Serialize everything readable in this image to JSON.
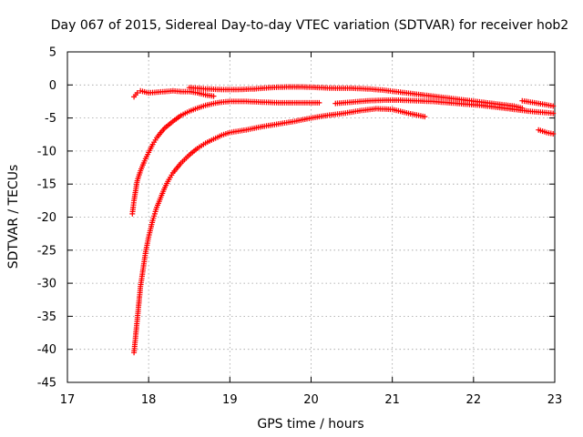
{
  "chart_data": {
    "type": "scatter",
    "title": "Day 067 of 2015, Sidereal Day-to-day VTEC variation (SDTVAR) for receiver hob2",
    "xlabel": "GPS time / hours",
    "ylabel": "SDTVAR / TECUs",
    "xlim": [
      17,
      23
    ],
    "ylim": [
      -45,
      5
    ],
    "xticks": [
      "17",
      "18",
      "19",
      "20",
      "21",
      "22",
      "23"
    ],
    "yticks": [
      "5",
      "0",
      "-5",
      "-10",
      "-15",
      "-20",
      "-25",
      "-30",
      "-35",
      "-40",
      "-45"
    ],
    "grid": true,
    "marker": "+",
    "color": "#ff0000",
    "series": [
      {
        "points": [
          [
            17.82,
            -1.8
          ],
          [
            17.86,
            -1.2
          ],
          [
            17.9,
            -0.9
          ],
          [
            18.0,
            -1.2
          ],
          [
            18.1,
            -1.1
          ],
          [
            18.2,
            -1.0
          ],
          [
            18.3,
            -0.9
          ],
          [
            18.4,
            -1.0
          ],
          [
            18.5,
            -1.0
          ],
          [
            18.6,
            -1.2
          ],
          [
            18.7,
            -1.5
          ],
          [
            18.8,
            -1.7
          ]
        ]
      },
      {
        "points": [
          [
            18.5,
            -0.4
          ],
          [
            18.7,
            -0.6
          ],
          [
            18.9,
            -0.7
          ],
          [
            19.1,
            -0.7
          ],
          [
            19.3,
            -0.6
          ],
          [
            19.5,
            -0.4
          ],
          [
            19.7,
            -0.3
          ],
          [
            19.9,
            -0.3
          ],
          [
            20.1,
            -0.4
          ],
          [
            20.3,
            -0.5
          ],
          [
            20.5,
            -0.5
          ],
          [
            20.7,
            -0.6
          ],
          [
            20.9,
            -0.8
          ],
          [
            21.1,
            -1.1
          ],
          [
            21.3,
            -1.4
          ],
          [
            21.5,
            -1.7
          ],
          [
            21.7,
            -2.0
          ],
          [
            21.9,
            -2.3
          ],
          [
            22.1,
            -2.6
          ],
          [
            22.3,
            -2.9
          ],
          [
            22.5,
            -3.2
          ],
          [
            22.6,
            -3.5
          ]
        ]
      },
      {
        "points": [
          [
            22.6,
            -2.4
          ],
          [
            22.7,
            -2.6
          ],
          [
            22.8,
            -2.8
          ],
          [
            22.9,
            -3.0
          ],
          [
            22.98,
            -3.2
          ]
        ]
      },
      {
        "points": [
          [
            22.8,
            -6.8
          ],
          [
            22.9,
            -7.2
          ],
          [
            22.98,
            -7.4
          ]
        ]
      },
      {
        "points": [
          [
            17.8,
            -19.5
          ],
          [
            17.82,
            -17.5
          ],
          [
            17.84,
            -16.0
          ],
          [
            17.86,
            -14.5
          ],
          [
            17.9,
            -13.0
          ],
          [
            17.95,
            -11.5
          ],
          [
            18.0,
            -10.2
          ],
          [
            18.05,
            -9.0
          ],
          [
            18.1,
            -8.0
          ],
          [
            18.15,
            -7.2
          ],
          [
            18.2,
            -6.5
          ],
          [
            18.3,
            -5.5
          ],
          [
            18.4,
            -4.6
          ],
          [
            18.5,
            -4.0
          ],
          [
            18.6,
            -3.5
          ],
          [
            18.7,
            -3.1
          ],
          [
            18.8,
            -2.8
          ],
          [
            18.9,
            -2.6
          ],
          [
            19.0,
            -2.5
          ],
          [
            19.2,
            -2.5
          ],
          [
            19.4,
            -2.6
          ],
          [
            19.6,
            -2.7
          ],
          [
            19.8,
            -2.7
          ],
          [
            20.0,
            -2.7
          ],
          [
            20.1,
            -2.7
          ]
        ]
      },
      {
        "points": [
          [
            20.3,
            -2.8
          ],
          [
            20.5,
            -2.6
          ],
          [
            20.7,
            -2.4
          ],
          [
            20.9,
            -2.3
          ],
          [
            21.1,
            -2.3
          ],
          [
            21.3,
            -2.4
          ],
          [
            21.5,
            -2.5
          ],
          [
            21.7,
            -2.7
          ],
          [
            21.9,
            -2.9
          ],
          [
            22.1,
            -3.1
          ],
          [
            22.3,
            -3.4
          ],
          [
            22.5,
            -3.7
          ],
          [
            22.7,
            -4.0
          ],
          [
            22.9,
            -4.2
          ],
          [
            22.98,
            -4.3
          ]
        ]
      },
      {
        "points": [
          [
            17.82,
            -40.5
          ],
          [
            17.84,
            -38.0
          ],
          [
            17.86,
            -35.5
          ],
          [
            17.88,
            -33.0
          ],
          [
            17.9,
            -30.5
          ],
          [
            17.93,
            -28.0
          ],
          [
            17.96,
            -25.5
          ],
          [
            18.0,
            -23.0
          ],
          [
            18.05,
            -20.5
          ],
          [
            18.1,
            -18.5
          ],
          [
            18.15,
            -17.0
          ],
          [
            18.2,
            -15.5
          ],
          [
            18.25,
            -14.3
          ],
          [
            18.3,
            -13.3
          ],
          [
            18.4,
            -11.8
          ],
          [
            18.5,
            -10.6
          ],
          [
            18.6,
            -9.6
          ],
          [
            18.7,
            -8.8
          ],
          [
            18.8,
            -8.2
          ],
          [
            18.9,
            -7.6
          ],
          [
            19.0,
            -7.2
          ],
          [
            19.2,
            -6.8
          ],
          [
            19.4,
            -6.3
          ],
          [
            19.6,
            -5.9
          ],
          [
            19.8,
            -5.5
          ],
          [
            20.0,
            -5.0
          ],
          [
            20.2,
            -4.6
          ],
          [
            20.4,
            -4.3
          ],
          [
            20.6,
            -3.9
          ],
          [
            20.8,
            -3.6
          ],
          [
            21.0,
            -3.7
          ],
          [
            21.2,
            -4.3
          ],
          [
            21.4,
            -4.8
          ]
        ]
      }
    ]
  }
}
